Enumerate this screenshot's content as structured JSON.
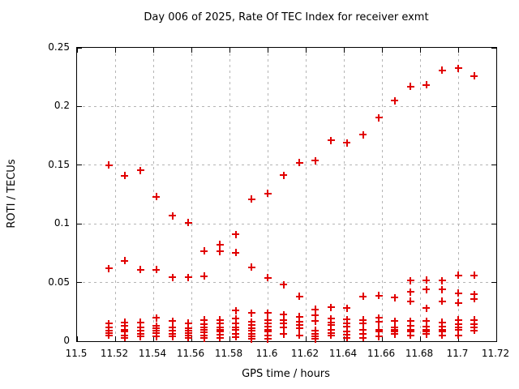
{
  "chart_data": {
    "type": "scatter",
    "title": "Day 006 of 2025, Rate Of TEC Index for receiver exmt",
    "xlabel": "GPS time / hours",
    "ylabel": "ROTI / TECUs",
    "xlim": [
      11.5,
      11.72
    ],
    "ylim": [
      0,
      0.25
    ],
    "x_tick_values": [
      11.5,
      11.52,
      11.54,
      11.56,
      11.58,
      11.6,
      11.62,
      11.64,
      11.66,
      11.68,
      11.7,
      11.72
    ],
    "x_tick_labels": [
      "11.5",
      "11.52",
      "11.54",
      "11.56",
      "11.58",
      "11.6",
      "11.62",
      "11.64",
      "11.66",
      "11.68",
      "11.7",
      "11.72"
    ],
    "y_tick_values": [
      0,
      0.05,
      0.1,
      0.15,
      0.2,
      0.25
    ],
    "y_tick_labels": [
      "0",
      "0.05",
      "0.1",
      "0.15",
      "0.2",
      "0.25"
    ],
    "grid": true,
    "grid_x": [
      11.52,
      11.54,
      11.56,
      11.58,
      11.6,
      11.62,
      11.64,
      11.66,
      11.68,
      11.7
    ],
    "grid_y": [
      0.05,
      0.1,
      0.15,
      0.2
    ],
    "legend": "none",
    "marker": "plus",
    "colors": {
      "marker": "#e10000",
      "grid": "#b5b5b5",
      "border": "#000000",
      "text": "#000000",
      "background": "#ffffff"
    },
    "series": [
      {
        "name": "ROTI",
        "epochs": [
          {
            "x": 11.5167,
            "y": [
              0.15,
              0.062,
              0.015,
              0.012,
              0.009,
              0.007,
              0.005
            ]
          },
          {
            "x": 11.525,
            "y": [
              0.141,
              0.0685,
              0.016,
              0.013,
              0.01,
              0.008,
              0.005,
              0.003
            ]
          },
          {
            "x": 11.5333,
            "y": [
              0.1455,
              0.061,
              0.016,
              0.012,
              0.009,
              0.006,
              0.004
            ]
          },
          {
            "x": 11.5417,
            "y": [
              0.123,
              0.061,
              0.02,
              0.013,
              0.011,
              0.009,
              0.007,
              0.004
            ]
          },
          {
            "x": 11.55,
            "y": [
              0.107,
              0.0545,
              0.017,
              0.0115,
              0.009,
              0.0065,
              0.004
            ]
          },
          {
            "x": 11.5583,
            "y": [
              0.101,
              0.0545,
              0.0155,
              0.011,
              0.009,
              0.007,
              0.005,
              0.003
            ]
          },
          {
            "x": 11.5667,
            "y": [
              0.077,
              0.0555,
              0.018,
              0.0145,
              0.012,
              0.01,
              0.0075,
              0.005,
              0.0025
            ]
          },
          {
            "x": 11.575,
            "y": [
              0.0825,
              0.0765,
              0.018,
              0.015,
              0.012,
              0.01,
              0.008,
              0.0055,
              0.003
            ]
          },
          {
            "x": 11.5833,
            "y": [
              0.091,
              0.0755,
              0.026,
              0.019,
              0.015,
              0.012,
              0.0095,
              0.0065,
              0.0035
            ]
          },
          {
            "x": 11.5917,
            "y": [
              0.121,
              0.063,
              0.024,
              0.0165,
              0.0135,
              0.011,
              0.009,
              0.0065,
              0.004,
              0.002
            ]
          },
          {
            "x": 11.6,
            "y": [
              0.126,
              0.054,
              0.024,
              0.018,
              0.015,
              0.0125,
              0.01,
              0.008,
              0.005,
              0.002
            ]
          },
          {
            "x": 11.6083,
            "y": [
              0.1415,
              0.048,
              0.0225,
              0.018,
              0.015,
              0.012,
              0.006
            ]
          },
          {
            "x": 11.6167,
            "y": [
              0.152,
              0.038,
              0.021,
              0.0165,
              0.0135,
              0.011,
              0.005
            ]
          },
          {
            "x": 11.625,
            "y": [
              0.154,
              0.027,
              0.022,
              0.017,
              0.009,
              0.006,
              0.004,
              0.002
            ]
          },
          {
            "x": 11.6333,
            "y": [
              0.171,
              0.029,
              0.019,
              0.016,
              0.0135,
              0.0095,
              0.007,
              0.005
            ]
          },
          {
            "x": 11.6417,
            "y": [
              0.169,
              0.028,
              0.0185,
              0.0155,
              0.0125,
              0.0085,
              0.0055,
              0.003
            ]
          },
          {
            "x": 11.65,
            "y": [
              0.176,
              0.038,
              0.018,
              0.015,
              0.01,
              0.006,
              0.003
            ]
          },
          {
            "x": 11.6583,
            "y": [
              0.1905,
              0.039,
              0.02,
              0.0165,
              0.01,
              0.008,
              0.004
            ]
          },
          {
            "x": 11.6667,
            "y": [
              0.205,
              0.037,
              0.017,
              0.012,
              0.01,
              0.008,
              0.006
            ]
          },
          {
            "x": 11.675,
            "y": [
              0.217,
              0.0515,
              0.042,
              0.034,
              0.017,
              0.013,
              0.01,
              0.008,
              0.005
            ]
          },
          {
            "x": 11.6833,
            "y": [
              0.2185,
              0.052,
              0.044,
              0.028,
              0.017,
              0.0125,
              0.01,
              0.0085,
              0.006
            ]
          },
          {
            "x": 11.6917,
            "y": [
              0.231,
              0.0515,
              0.044,
              0.034,
              0.016,
              0.0125,
              0.01,
              0.008,
              0.005
            ]
          },
          {
            "x": 11.7,
            "y": [
              0.2325,
              0.056,
              0.041,
              0.0325,
              0.018,
              0.0145,
              0.012,
              0.01,
              0.005
            ]
          },
          {
            "x": 11.7083,
            "y": [
              0.226,
              0.056,
              0.04,
              0.036,
              0.018,
              0.0145,
              0.012,
              0.009
            ]
          }
        ]
      }
    ]
  }
}
